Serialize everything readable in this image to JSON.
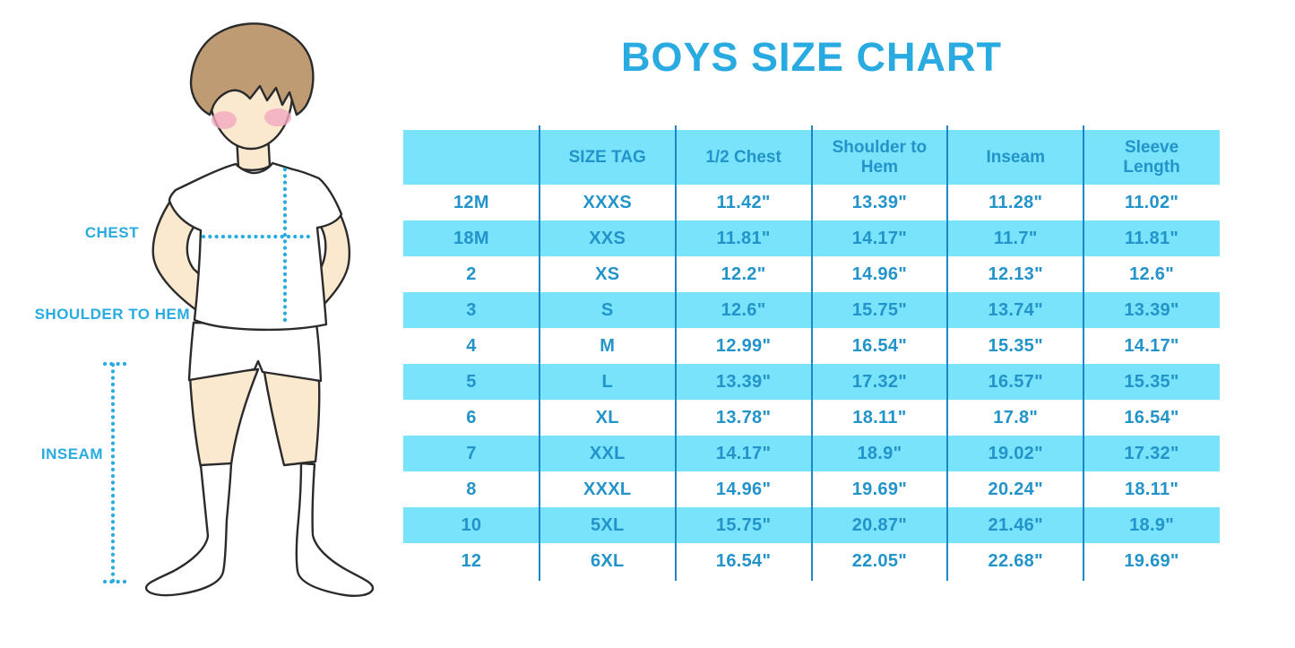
{
  "title": "BOYS SIZE CHART",
  "figure_labels": {
    "chest": "CHEST",
    "shoulder_to_hem": "SHOULDER TO HEM",
    "inseam": "INSEAM"
  },
  "colors": {
    "accent_blue": "#29ABE2",
    "table_text_blue": "#2294CA",
    "row_cyan": "#78E3FB",
    "column_divider_blue": "#1C87C6",
    "skin": "#FBE9CF",
    "hair_brown": "#BE9B72",
    "blush_pink": "#F2A9BE"
  },
  "chart_data": {
    "type": "table",
    "title": "BOYS SIZE CHART",
    "columns": [
      "",
      "SIZE TAG",
      "1/2 Chest",
      "Shoulder to Hem",
      "Inseam",
      "Sleeve Length"
    ],
    "rows": [
      [
        "12M",
        "XXXS",
        "11.42\"",
        "13.39\"",
        "11.28\"",
        "11.02\""
      ],
      [
        "18M",
        "XXS",
        "11.81\"",
        "14.17\"",
        "11.7\"",
        "11.81\""
      ],
      [
        "2",
        "XS",
        "12.2\"",
        "14.96\"",
        "12.13\"",
        "12.6\""
      ],
      [
        "3",
        "S",
        "12.6\"",
        "15.75\"",
        "13.74\"",
        "13.39\""
      ],
      [
        "4",
        "M",
        "12.99\"",
        "16.54\"",
        "15.35\"",
        "14.17\""
      ],
      [
        "5",
        "L",
        "13.39\"",
        "17.32\"",
        "16.57\"",
        "15.35\""
      ],
      [
        "6",
        "XL",
        "13.78\"",
        "18.11\"",
        "17.8\"",
        "16.54\""
      ],
      [
        "7",
        "XXL",
        "14.17\"",
        "18.9\"",
        "19.02\"",
        "17.32\""
      ],
      [
        "8",
        "XXXL",
        "14.96\"",
        "19.69\"",
        "20.24\"",
        "18.11\""
      ],
      [
        "10",
        "5XL",
        "15.75\"",
        "20.87\"",
        "21.46\"",
        "18.9\""
      ],
      [
        "12",
        "6XL",
        "16.54\"",
        "22.05\"",
        "22.68\"",
        "19.69\""
      ]
    ],
    "row_striping": "white/cyan alternating, header cyan",
    "legend_position": "none",
    "grid": "vertical column dividers only"
  }
}
